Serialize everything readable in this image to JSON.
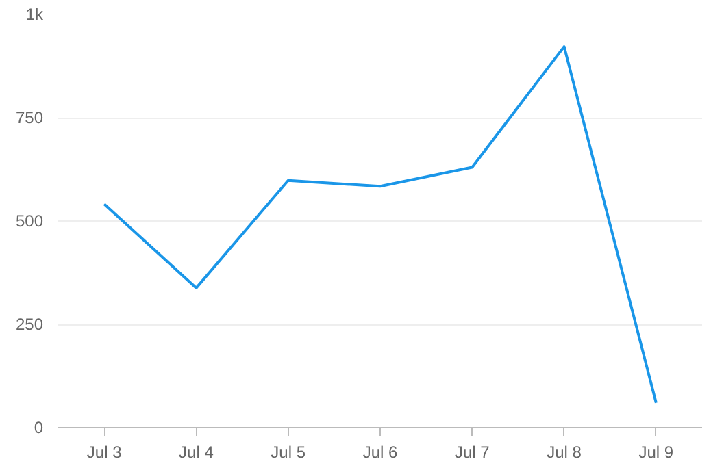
{
  "chart_data": {
    "type": "line",
    "categories": [
      "Jul 3",
      "Jul 4",
      "Jul 5",
      "Jul 6",
      "Jul 7",
      "Jul 8",
      "Jul 9"
    ],
    "series": [
      {
        "color": "#1a96e8",
        "values": [
          541,
          338,
          598,
          584,
          630,
          922,
          60
        ]
      }
    ],
    "ylim": [
      0,
      1000
    ],
    "yticks": [
      0,
      250,
      500,
      750,
      {
        "value": 1000,
        "label": "1k"
      }
    ],
    "grid": "y",
    "marker": "none",
    "line_style": "solid"
  }
}
